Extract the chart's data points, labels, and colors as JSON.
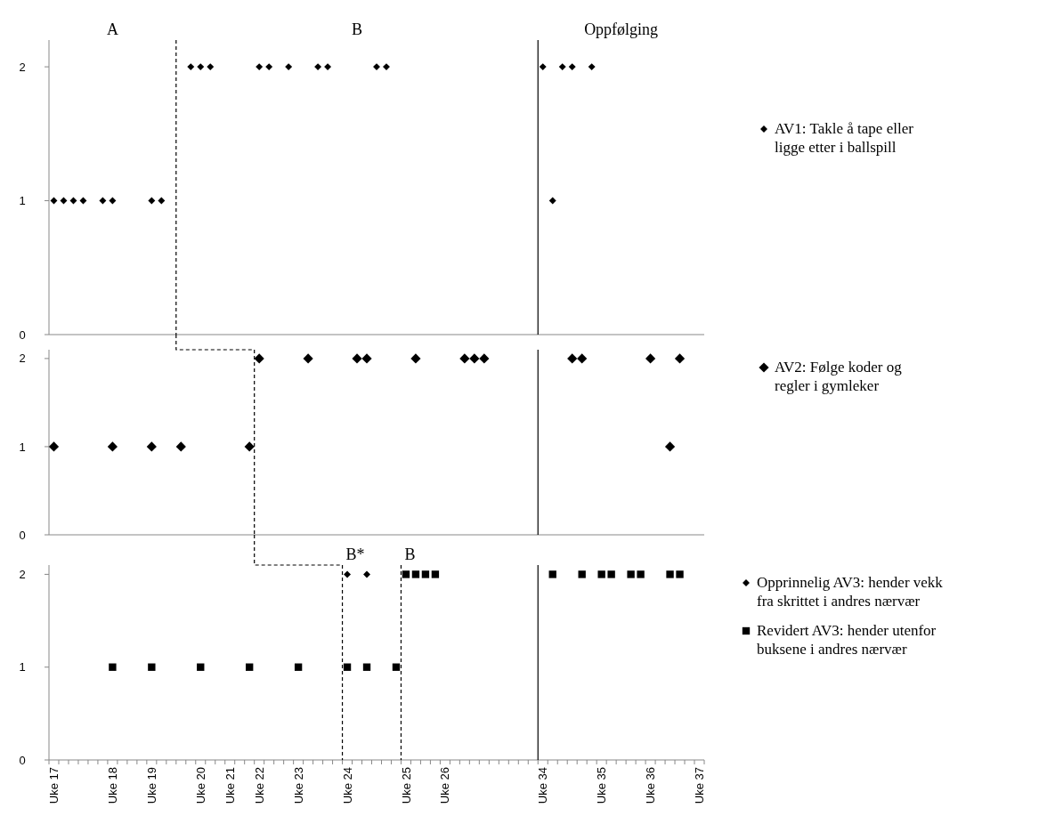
{
  "chart_data": [
    {
      "type": "scatter",
      "ylim": [
        0,
        2.2
      ],
      "yticks": [
        0,
        1,
        2
      ],
      "tick_labels": "y",
      "legend": "right",
      "categories": [
        null,
        null,
        null,
        null,
        null,
        null,
        null,
        null,
        null,
        null,
        null,
        null,
        null,
        null,
        null,
        null,
        null,
        null,
        null,
        null,
        null,
        null,
        null,
        null,
        null,
        null,
        null,
        null,
        null,
        null,
        null,
        null,
        null,
        null,
        null,
        null,
        null,
        null,
        null,
        null,
        null,
        null,
        null,
        null,
        null,
        null,
        null,
        null,
        null,
        null,
        null,
        null,
        null,
        null,
        null,
        null,
        null,
        null,
        null,
        null,
        null,
        null,
        null,
        null,
        null,
        null,
        null
      ],
      "series": [
        {
          "name": "AV1: Takle å tape eller ligge etter i ballspill",
          "color": "#000000",
          "marker": "diamond",
          "values": [
            1,
            1,
            1,
            1,
            null,
            1,
            1,
            null,
            null,
            null,
            1,
            1,
            null,
            null,
            2,
            2,
            2,
            null,
            null,
            null,
            null,
            2,
            2,
            null,
            2,
            null,
            null,
            2,
            2,
            null,
            null,
            null,
            null,
            2,
            2,
            null,
            null,
            null,
            null,
            null,
            null,
            null,
            null,
            null,
            null,
            null,
            null,
            null,
            null,
            null,
            2,
            1,
            2,
            2,
            null,
            2,
            null,
            null,
            null,
            null,
            null,
            null,
            null,
            null,
            null,
            null,
            null
          ]
        }
      ],
      "annotations": [
        "A",
        "B",
        "Oppfølging"
      ]
    },
    {
      "type": "scatter",
      "ylim": [
        0,
        2.1
      ],
      "yticks": [
        0,
        1,
        2
      ],
      "tick_labels": "y",
      "legend": "right",
      "categories": [
        null,
        null,
        null,
        null,
        null,
        null,
        null,
        null,
        null,
        null,
        null,
        null,
        null,
        null,
        null,
        null,
        null,
        null,
        null,
        null,
        null,
        null,
        null,
        null,
        null,
        null,
        null,
        null,
        null,
        null,
        null,
        null,
        null,
        null,
        null,
        null,
        null,
        null,
        null,
        null,
        null,
        null,
        null,
        null,
        null,
        null,
        null,
        null,
        null,
        null,
        null,
        null,
        null,
        null,
        null,
        null,
        null,
        null,
        null,
        null,
        null,
        null,
        null,
        null,
        null,
        null,
        null
      ],
      "series": [
        {
          "name": "AV2: Følge koder og regler i gymleker",
          "color": "#000000",
          "marker": "diamond",
          "values": [
            1,
            null,
            null,
            null,
            null,
            null,
            1,
            null,
            null,
            null,
            1,
            null,
            null,
            1,
            null,
            null,
            null,
            null,
            null,
            null,
            1,
            2,
            null,
            null,
            null,
            null,
            2,
            null,
            null,
            null,
            null,
            2,
            2,
            null,
            null,
            null,
            null,
            2,
            null,
            null,
            null,
            null,
            2,
            2,
            2,
            null,
            null,
            null,
            null,
            null,
            null,
            null,
            null,
            2,
            2,
            null,
            null,
            null,
            null,
            null,
            null,
            2,
            null,
            1,
            2,
            null,
            null
          ]
        }
      ]
    },
    {
      "type": "scatter",
      "ylim": [
        0,
        2.1
      ],
      "yticks": [
        0,
        1,
        2
      ],
      "legend": "right",
      "categories": [
        "Uke 17",
        null,
        null,
        null,
        null,
        null,
        "Uke 18",
        null,
        null,
        null,
        "Uke 19",
        null,
        null,
        null,
        null,
        "Uke 20",
        null,
        null,
        "Uke 21",
        null,
        null,
        "Uke 22",
        null,
        null,
        null,
        "Uke 23",
        null,
        null,
        null,
        null,
        "Uke 24",
        null,
        null,
        null,
        null,
        null,
        "Uke 25",
        null,
        null,
        null,
        "Uke 26",
        null,
        null,
        null,
        null,
        null,
        null,
        null,
        null,
        null,
        "Uke 34",
        null,
        null,
        null,
        null,
        null,
        "Uke 35",
        null,
        null,
        null,
        null,
        "Uke 36",
        null,
        null,
        null,
        null,
        "Uke 37"
      ],
      "series": [
        {
          "name": "Opprinnelig AV3: hender vekk fra skrittet i andres nærvær",
          "color": "#000000",
          "marker": "diamond",
          "values": [
            null,
            null,
            null,
            null,
            null,
            null,
            null,
            null,
            null,
            null,
            null,
            null,
            null,
            null,
            null,
            null,
            null,
            null,
            null,
            null,
            null,
            null,
            null,
            null,
            null,
            null,
            null,
            null,
            null,
            null,
            2,
            null,
            2,
            null,
            null,
            null,
            null,
            null,
            null,
            null,
            null,
            null,
            null,
            null,
            null,
            null,
            null,
            null,
            null,
            null,
            null,
            null,
            null,
            null,
            null,
            null,
            null,
            null,
            null,
            null,
            null,
            null,
            null,
            null,
            null,
            null,
            null
          ]
        },
        {
          "name": "Revidert AV3: hender utenfor buksene i andres nærvær",
          "color": "#000000",
          "marker": "square",
          "values": [
            null,
            null,
            null,
            null,
            null,
            null,
            1,
            null,
            null,
            null,
            1,
            null,
            null,
            null,
            null,
            1,
            null,
            null,
            null,
            null,
            1,
            null,
            null,
            null,
            null,
            1,
            null,
            null,
            null,
            null,
            1,
            null,
            1,
            null,
            null,
            1,
            2,
            2,
            2,
            2,
            null,
            null,
            null,
            null,
            null,
            null,
            null,
            null,
            null,
            null,
            null,
            2,
            null,
            null,
            2,
            null,
            2,
            2,
            null,
            2,
            2,
            null,
            null,
            2,
            2,
            null,
            null
          ]
        }
      ],
      "annotations": [
        "B*",
        "B"
      ]
    }
  ]
}
